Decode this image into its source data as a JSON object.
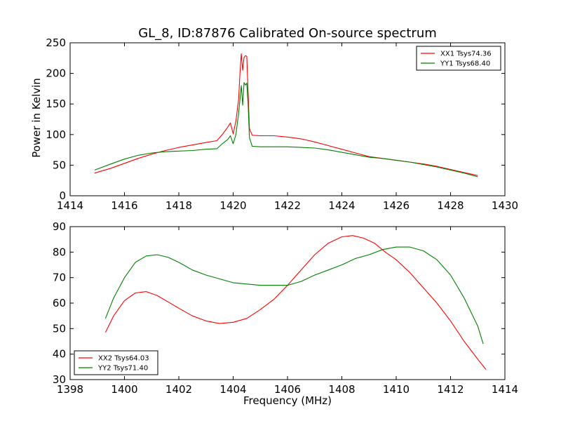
{
  "chart_data": [
    {
      "type": "line",
      "title": "GL_8, ID:87876 Calibrated On-source spectrum",
      "xlabel": "",
      "ylabel": "Power in Kelvin",
      "xlim": [
        1414,
        1430
      ],
      "ylim": [
        0,
        250
      ],
      "xticks": [
        "1414",
        "1416",
        "1418",
        "1420",
        "1422",
        "1424",
        "1426",
        "1428",
        "1430"
      ],
      "yticks": [
        "0",
        "50",
        "100",
        "150",
        "200",
        "250"
      ],
      "grid": false,
      "legend_position": "top-right",
      "series": [
        {
          "name": "XX1 Tsys74.36",
          "color": "#ff0000",
          "x": [
            1414.9,
            1415.5,
            1416,
            1416.5,
            1417,
            1417.5,
            1418,
            1418.5,
            1419,
            1419.4,
            1419.6,
            1419.8,
            1419.9,
            1420.0,
            1420.1,
            1420.2,
            1420.25,
            1420.3,
            1420.35,
            1420.4,
            1420.45,
            1420.5,
            1420.55,
            1420.6,
            1420.7,
            1421,
            1421.5,
            1422,
            1422.5,
            1423,
            1423.5,
            1424,
            1424.5,
            1425,
            1425.5,
            1426,
            1426.5,
            1427,
            1427.5,
            1428,
            1428.5,
            1429
          ],
          "y": [
            37,
            45,
            53,
            61,
            68,
            74,
            79,
            83,
            87,
            90,
            100,
            112,
            119,
            101,
            122,
            158,
            200,
            232,
            205,
            226,
            229,
            228,
            170,
            110,
            99,
            98,
            98,
            96,
            93,
            88,
            82,
            76,
            70,
            64,
            61,
            58,
            55,
            52,
            48,
            43,
            38,
            33
          ]
        },
        {
          "name": "YY1 Tsys68.40",
          "color": "#008000",
          "x": [
            1414.9,
            1415.5,
            1416,
            1416.5,
            1417,
            1417.5,
            1418,
            1418.5,
            1419,
            1419.4,
            1419.6,
            1419.8,
            1419.9,
            1420.0,
            1420.1,
            1420.2,
            1420.3,
            1420.35,
            1420.4,
            1420.45,
            1420.5,
            1420.55,
            1420.6,
            1420.7,
            1421,
            1421.5,
            1422,
            1422.5,
            1423,
            1423.5,
            1424,
            1424.5,
            1425,
            1425.5,
            1426,
            1426.5,
            1427,
            1427.5,
            1428,
            1428.5,
            1429
          ],
          "y": [
            42,
            52,
            60,
            66,
            70,
            72,
            73,
            74,
            76,
            77,
            85,
            92,
            98,
            85,
            100,
            135,
            180,
            148,
            185,
            181,
            184,
            150,
            95,
            81,
            80,
            80,
            80,
            79,
            78,
            75,
            71,
            67,
            63,
            61,
            58,
            55,
            51,
            47,
            42,
            37,
            31
          ]
        }
      ]
    },
    {
      "type": "line",
      "title": "",
      "xlabel": "Frequency (MHz)",
      "ylabel": "",
      "xlim": [
        1398,
        1414
      ],
      "ylim": [
        30,
        90
      ],
      "xticks": [
        "1398",
        "1400",
        "1402",
        "1404",
        "1406",
        "1408",
        "1410",
        "1412",
        "1414"
      ],
      "yticks": [
        "30",
        "40",
        "50",
        "60",
        "70",
        "80",
        "90"
      ],
      "grid": false,
      "legend_position": "bottom-left",
      "series": [
        {
          "name": "XX2 Tsys64.03",
          "color": "#ff0000",
          "x": [
            1399.3,
            1399.6,
            1400,
            1400.4,
            1400.8,
            1401.2,
            1401.6,
            1402,
            1402.5,
            1403,
            1403.5,
            1404,
            1404.5,
            1405,
            1405.5,
            1406,
            1406.5,
            1407,
            1407.5,
            1408,
            1408.4,
            1408.8,
            1409.2,
            1409.6,
            1410,
            1410.5,
            1411,
            1411.5,
            1412,
            1412.5,
            1413,
            1413.3
          ],
          "y": [
            48.5,
            55,
            61,
            64,
            64.5,
            63,
            60.5,
            58,
            55,
            53,
            52,
            52.5,
            54,
            57.5,
            61.5,
            67,
            73,
            79,
            83.5,
            86,
            86.5,
            85.5,
            83.5,
            80,
            77,
            72,
            66,
            60,
            53,
            45,
            38,
            34
          ]
        },
        {
          "name": "YY2 Tsys71.40",
          "color": "#008000",
          "x": [
            1399.3,
            1399.6,
            1400,
            1400.4,
            1400.8,
            1401.2,
            1401.6,
            1402,
            1402.5,
            1403,
            1403.5,
            1404,
            1404.5,
            1405,
            1405.5,
            1406,
            1406.5,
            1407,
            1407.5,
            1408,
            1408.5,
            1409,
            1409.5,
            1410,
            1410.5,
            1411,
            1411.5,
            1412,
            1412.5,
            1413,
            1413.2
          ],
          "y": [
            54,
            62,
            70,
            76,
            78.5,
            79,
            78,
            76,
            73,
            71,
            69.5,
            68,
            67.5,
            67,
            67,
            67,
            68.5,
            71,
            73,
            75,
            77.5,
            79,
            81,
            82,
            82,
            80.5,
            77,
            71,
            62,
            51,
            44
          ]
        }
      ]
    }
  ]
}
